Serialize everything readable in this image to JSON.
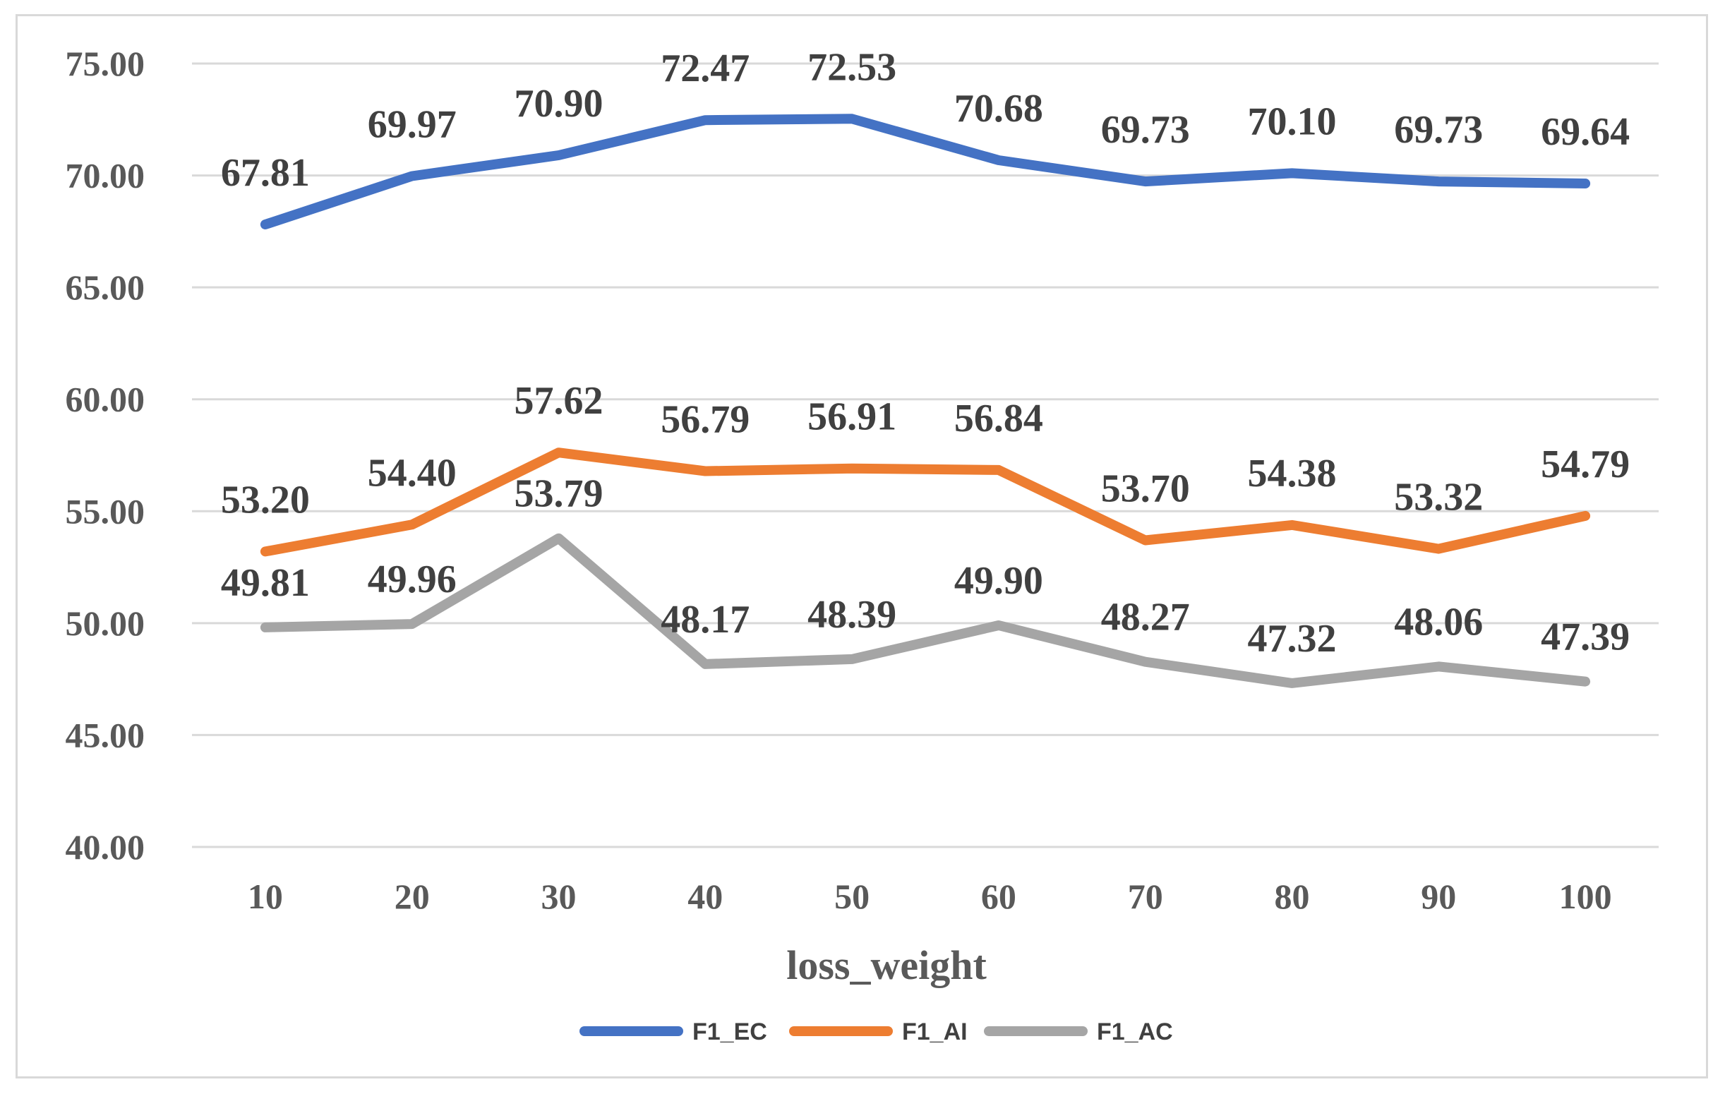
{
  "chart_data": {
    "type": "line",
    "title": "",
    "xlabel": "loss_weight",
    "ylabel": "",
    "categories": [
      "10",
      "20",
      "30",
      "40",
      "50",
      "60",
      "70",
      "80",
      "90",
      "100"
    ],
    "ylim": [
      40,
      75
    ],
    "yticks": [
      40,
      45,
      50,
      55,
      60,
      65,
      70,
      75
    ],
    "ytick_labels": [
      "40.00",
      "45.00",
      "50.00",
      "55.00",
      "60.00",
      "65.00",
      "70.00",
      "75.00"
    ],
    "grid": true,
    "legend_position": "bottom",
    "series": [
      {
        "name": "F1_EC",
        "color": "#4472c4",
        "values": [
          67.81,
          69.97,
          70.9,
          72.47,
          72.53,
          70.68,
          69.73,
          70.1,
          69.73,
          69.64
        ],
        "labels": [
          "67.81",
          "69.97",
          "70.90",
          "72.47",
          "72.53",
          "70.68",
          "69.73",
          "70.10",
          "69.73",
          "69.64"
        ]
      },
      {
        "name": "F1_AI",
        "color": "#ed7d31",
        "values": [
          53.2,
          54.4,
          57.62,
          56.79,
          56.91,
          56.84,
          53.7,
          54.38,
          53.32,
          54.79
        ],
        "labels": [
          "53.20",
          "54.40",
          "57.62",
          "56.79",
          "56.91",
          "56.84",
          "53.70",
          "54.38",
          "53.32",
          "54.79"
        ]
      },
      {
        "name": "F1_AC",
        "color": "#a5a5a5",
        "values": [
          49.81,
          49.96,
          53.79,
          48.17,
          48.39,
          49.9,
          48.27,
          47.32,
          48.06,
          47.39
        ],
        "labels": [
          "49.81",
          "49.96",
          "53.79",
          "48.17",
          "48.39",
          "49.90",
          "48.27",
          "47.32",
          "48.06",
          "47.39"
        ]
      }
    ]
  }
}
